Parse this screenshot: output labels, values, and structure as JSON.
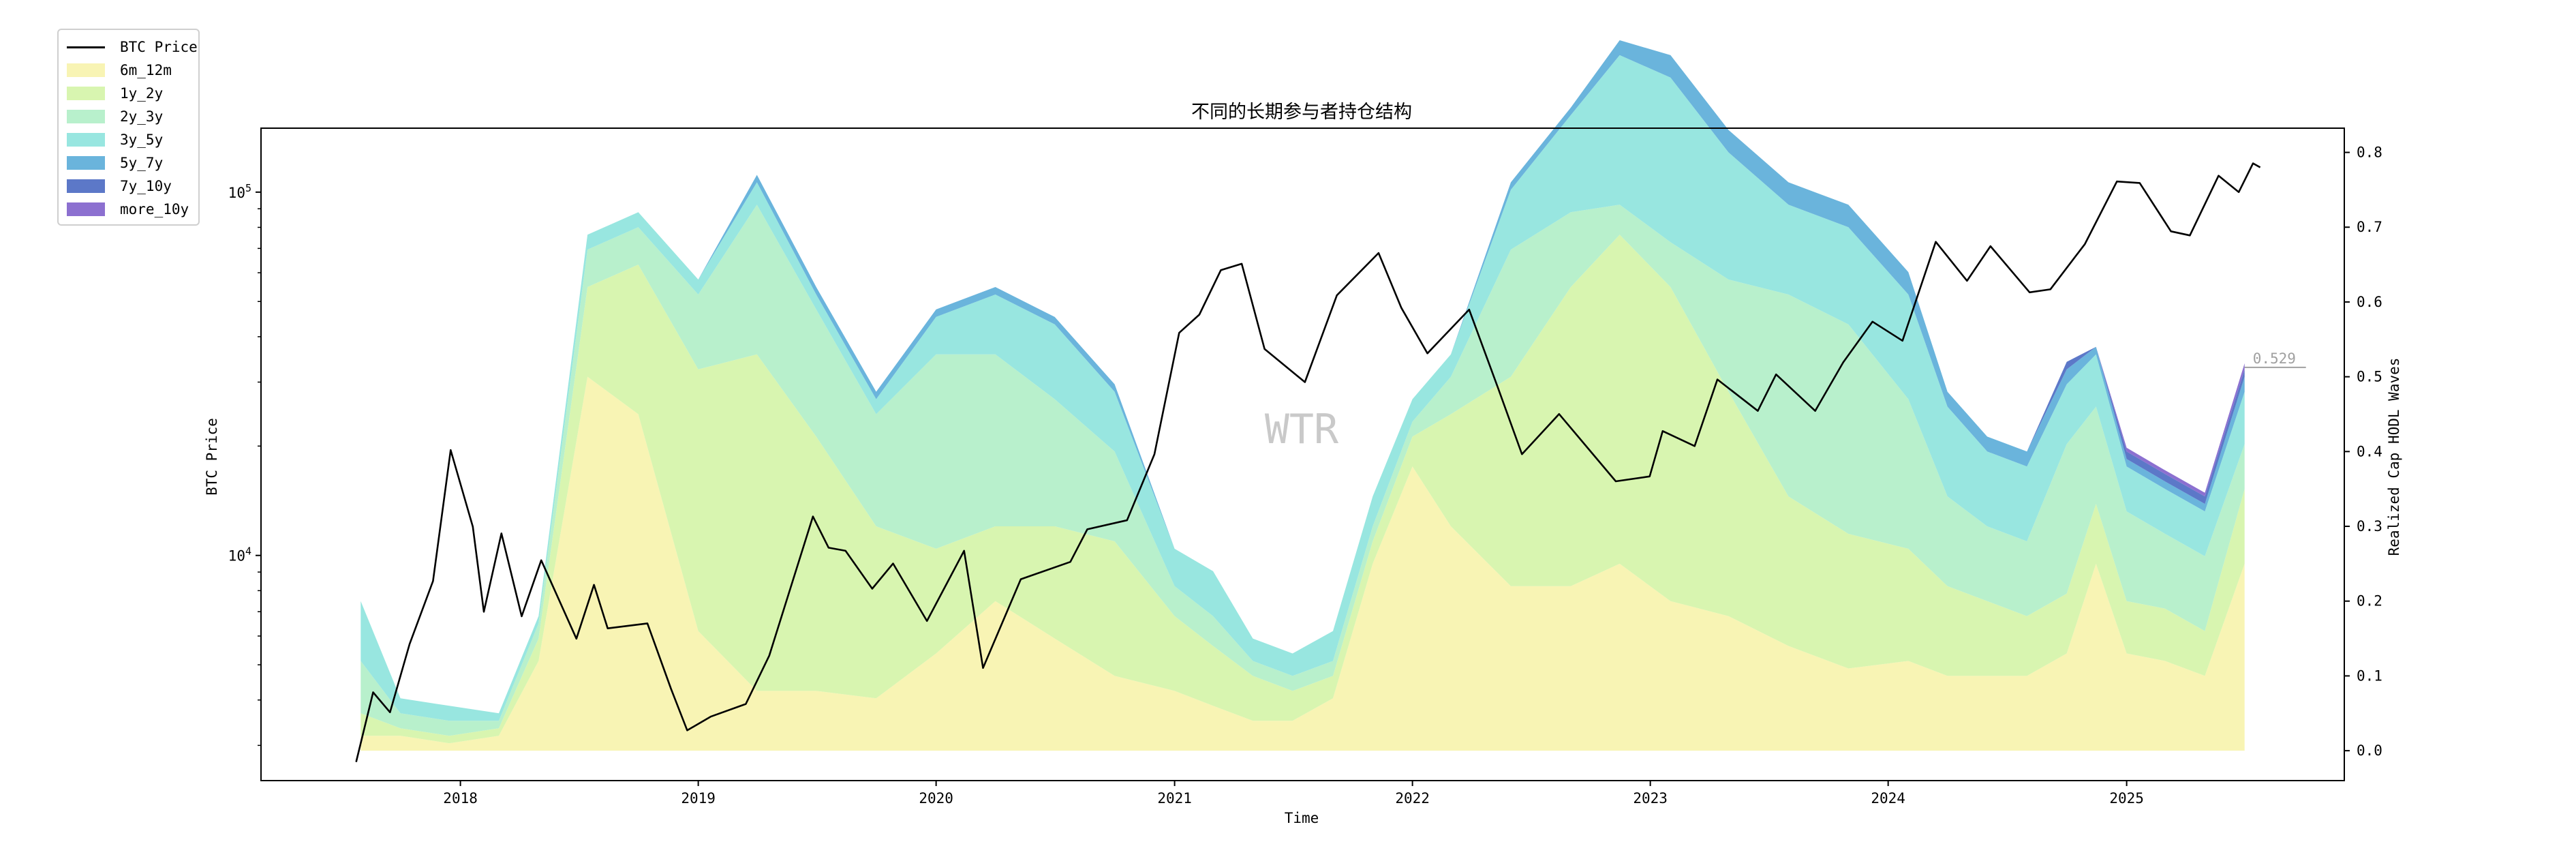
{
  "chart_data": {
    "type": "area",
    "title": "不同的长期参与者持仓结构",
    "xlabel": "Time",
    "ylabel_left": "BTC Price",
    "ylabel_right": "Realized Cap HODL Waves",
    "left_axis": {
      "scale": "log",
      "ylim": [
        2400,
        150000
      ],
      "ticks": [
        10000,
        100000
      ],
      "tick_labels": [
        "10^4",
        "10^5"
      ]
    },
    "right_axis": {
      "ylim": [
        -0.04,
        0.8324
      ],
      "ticks": [
        0.0,
        0.1,
        0.2,
        0.3,
        0.4,
        0.5,
        0.6,
        0.7,
        0.8
      ],
      "tick_labels": [
        "0.0",
        "0.1",
        "0.2",
        "0.3",
        "0.4",
        "0.5",
        "0.6",
        "0.7",
        "0.8"
      ]
    },
    "xlim": [
      "2017-03-01",
      "2025-12-01"
    ],
    "x_tick_labels": [
      "2018",
      "2019",
      "2020",
      "2021",
      "2022",
      "2023",
      "2024",
      "2025"
    ],
    "x_tick_dates": [
      "2018-01-01",
      "2019-01-01",
      "2020-01-01",
      "2021-01-01",
      "2022-01-01",
      "2023-01-01",
      "2024-01-01",
      "2025-01-01"
    ],
    "watermark": "WTR",
    "last_value_label": "0.529",
    "legend_position": "upper-left",
    "grid": false,
    "dates": [
      "2017-08-01",
      "2017-10-01",
      "2017-12-15",
      "2018-03-01",
      "2018-05-01",
      "2018-07-15",
      "2018-10-01",
      "2019-01-01",
      "2019-04-01",
      "2019-07-01",
      "2019-10-01",
      "2020-01-01",
      "2020-04-01",
      "2020-07-01",
      "2020-10-01",
      "2021-01-01",
      "2021-03-01",
      "2021-05-01",
      "2021-07-01",
      "2021-09-01",
      "2021-11-01",
      "2022-01-01",
      "2022-03-01",
      "2022-06-01",
      "2022-09-01",
      "2022-11-15",
      "2023-02-01",
      "2023-05-01",
      "2023-08-01",
      "2023-11-01",
      "2024-02-01",
      "2024-04-01",
      "2024-06-01",
      "2024-08-01",
      "2024-10-01",
      "2024-11-15",
      "2025-01-01",
      "2025-03-01",
      "2025-05-01",
      "2025-07-01"
    ],
    "series": [
      {
        "name": "6m_12m",
        "color": "#f8f4b4",
        "values": [
          0.02,
          0.02,
          0.01,
          0.02,
          0.12,
          0.5,
          0.45,
          0.16,
          0.08,
          0.08,
          0.07,
          0.13,
          0.2,
          0.15,
          0.1,
          0.08,
          0.06,
          0.04,
          0.04,
          0.07,
          0.25,
          0.38,
          0.3,
          0.22,
          0.22,
          0.25,
          0.2,
          0.18,
          0.14,
          0.11,
          0.12,
          0.1,
          0.1,
          0.1,
          0.13,
          0.25,
          0.13,
          0.12,
          0.1,
          0.25
        ]
      },
      {
        "name": "1y_2y",
        "color": "#d8f5b0",
        "values": [
          0.03,
          0.01,
          0.01,
          0.01,
          0.03,
          0.12,
          0.2,
          0.35,
          0.45,
          0.34,
          0.23,
          0.14,
          0.1,
          0.15,
          0.18,
          0.1,
          0.08,
          0.06,
          0.04,
          0.03,
          0.03,
          0.04,
          0.15,
          0.28,
          0.4,
          0.44,
          0.42,
          0.3,
          0.2,
          0.18,
          0.15,
          0.12,
          0.1,
          0.08,
          0.08,
          0.08,
          0.07,
          0.07,
          0.06,
          0.1
        ]
      },
      {
        "name": "2y_3y",
        "color": "#b8f0cc",
        "values": [
          0.07,
          0.02,
          0.02,
          0.01,
          0.02,
          0.05,
          0.05,
          0.1,
          0.2,
          0.17,
          0.15,
          0.26,
          0.23,
          0.17,
          0.12,
          0.04,
          0.04,
          0.02,
          0.02,
          0.02,
          0.02,
          0.02,
          0.05,
          0.17,
          0.1,
          0.04,
          0.06,
          0.15,
          0.27,
          0.28,
          0.2,
          0.12,
          0.1,
          0.1,
          0.2,
          0.13,
          0.12,
          0.1,
          0.1,
          0.06
        ]
      },
      {
        "name": "3y_5y",
        "color": "#98e6e0",
        "values": [
          0.08,
          0.02,
          0.02,
          0.01,
          0.01,
          0.02,
          0.02,
          0.02,
          0.03,
          0.02,
          0.02,
          0.05,
          0.08,
          0.1,
          0.08,
          0.05,
          0.06,
          0.03,
          0.03,
          0.04,
          0.04,
          0.03,
          0.03,
          0.08,
          0.13,
          0.2,
          0.22,
          0.17,
          0.12,
          0.13,
          0.14,
          0.12,
          0.1,
          0.1,
          0.08,
          0.07,
          0.06,
          0.06,
          0.06,
          0.07
        ]
      },
      {
        "name": "5y_7y",
        "color": "#6ab4dc",
        "values": [
          0.0,
          0.0,
          0.0,
          0.0,
          0.0,
          0.0,
          0.0,
          0.0,
          0.01,
          0.01,
          0.01,
          0.01,
          0.01,
          0.01,
          0.01,
          0.0,
          0.0,
          0.0,
          0.0,
          0.0,
          0.0,
          0.0,
          0.0,
          0.01,
          0.01,
          0.02,
          0.03,
          0.03,
          0.03,
          0.03,
          0.03,
          0.02,
          0.02,
          0.02,
          0.02,
          0.01,
          0.01,
          0.01,
          0.01,
          0.02
        ]
      },
      {
        "name": "7y_10y",
        "color": "#5c78c8",
        "values": [
          0.0,
          0.0,
          0.0,
          0.0,
          0.0,
          0.0,
          0.0,
          0.0,
          0.0,
          0.0,
          0.0,
          0.0,
          0.0,
          0.0,
          0.0,
          0.0,
          0.0,
          0.0,
          0.0,
          0.0,
          0.0,
          0.0,
          0.0,
          0.0,
          0.0,
          0.0,
          0.0,
          0.0,
          0.0,
          0.0,
          0.0,
          0.0,
          0.0,
          0.0,
          0.01,
          0.0,
          0.01,
          0.01,
          0.01,
          0.01
        ]
      },
      {
        "name": "more_10y",
        "color": "#8c70d0",
        "values": [
          0.0,
          0.0,
          0.0,
          0.0,
          0.0,
          0.0,
          0.0,
          0.0,
          0.0,
          0.0,
          0.0,
          0.0,
          0.0,
          0.0,
          0.0,
          0.0,
          0.0,
          0.0,
          0.0,
          0.0,
          0.0,
          0.0,
          0.0,
          0.0,
          0.0,
          0.0,
          0.0,
          0.0,
          0.0,
          0.0,
          0.0,
          0.0,
          0.0,
          0.0,
          0.0,
          0.0,
          0.005,
          0.005,
          0.005,
          0.008
        ]
      }
    ],
    "price_series": {
      "name": "BTC Price",
      "color": "#000000",
      "axis": "left",
      "points": [
        [
          "2017-07-25",
          2700
        ],
        [
          "2017-08-20",
          4200
        ],
        [
          "2017-09-15",
          3700
        ],
        [
          "2017-10-15",
          5700
        ],
        [
          "2017-11-20",
          8500
        ],
        [
          "2017-12-17",
          19500
        ],
        [
          "2018-01-20",
          12000
        ],
        [
          "2018-02-06",
          7000
        ],
        [
          "2018-03-05",
          11500
        ],
        [
          "2018-04-05",
          6800
        ],
        [
          "2018-05-05",
          9700
        ],
        [
          "2018-06-28",
          5900
        ],
        [
          "2018-07-25",
          8300
        ],
        [
          "2018-08-15",
          6300
        ],
        [
          "2018-10-15",
          6500
        ],
        [
          "2018-11-20",
          4300
        ],
        [
          "2018-12-15",
          3300
        ],
        [
          "2019-01-20",
          3600
        ],
        [
          "2019-03-15",
          3900
        ],
        [
          "2019-04-20",
          5300
        ],
        [
          "2019-06-26",
          12800
        ],
        [
          "2019-07-20",
          10500
        ],
        [
          "2019-08-15",
          10300
        ],
        [
          "2019-09-25",
          8100
        ],
        [
          "2019-10-27",
          9500
        ],
        [
          "2019-12-18",
          6600
        ],
        [
          "2020-02-13",
          10300
        ],
        [
          "2020-03-13",
          4900
        ],
        [
          "2020-05-10",
          8600
        ],
        [
          "2020-07-25",
          9600
        ],
        [
          "2020-08-20",
          11800
        ],
        [
          "2020-10-20",
          12500
        ],
        [
          "2020-12-01",
          19000
        ],
        [
          "2021-01-08",
          41000
        ],
        [
          "2021-02-08",
          46000
        ],
        [
          "2021-03-13",
          61000
        ],
        [
          "2021-04-14",
          63500
        ],
        [
          "2021-05-19",
          37000
        ],
        [
          "2021-07-20",
          30000
        ],
        [
          "2021-09-07",
          52000
        ],
        [
          "2021-11-10",
          68000
        ],
        [
          "2021-12-15",
          48000
        ],
        [
          "2022-01-24",
          36000
        ],
        [
          "2022-03-29",
          47500
        ],
        [
          "2022-05-12",
          29000
        ],
        [
          "2022-06-18",
          19000
        ],
        [
          "2022-08-14",
          24500
        ],
        [
          "2022-11-09",
          16000
        ],
        [
          "2022-12-31",
          16500
        ],
        [
          "2023-01-20",
          22000
        ],
        [
          "2023-03-10",
          20000
        ],
        [
          "2023-04-14",
          30500
        ],
        [
          "2023-06-15",
          25000
        ],
        [
          "2023-07-13",
          31500
        ],
        [
          "2023-09-11",
          25000
        ],
        [
          "2023-10-24",
          34000
        ],
        [
          "2023-12-08",
          44000
        ],
        [
          "2024-01-23",
          39000
        ],
        [
          "2024-03-14",
          73000
        ],
        [
          "2024-05-01",
          57000
        ],
        [
          "2024-06-06",
          71000
        ],
        [
          "2024-08-05",
          53000
        ],
        [
          "2024-09-06",
          54000
        ],
        [
          "2024-10-29",
          72000
        ],
        [
          "2024-12-17",
          107000
        ],
        [
          "2025-01-21",
          106000
        ],
        [
          "2025-03-10",
          78000
        ],
        [
          "2025-04-08",
          76000
        ],
        [
          "2025-05-22",
          111000
        ],
        [
          "2025-06-22",
          100000
        ],
        [
          "2025-07-14",
          120000
        ],
        [
          "2025-07-25",
          117000
        ]
      ]
    }
  },
  "legend": [
    {
      "label": "BTC Price",
      "kind": "line",
      "color": "#000000"
    },
    {
      "label": "6m_12m",
      "kind": "patch",
      "color": "#f8f4b4"
    },
    {
      "label": "1y_2y",
      "kind": "patch",
      "color": "#d8f5b0"
    },
    {
      "label": "2y_3y",
      "kind": "patch",
      "color": "#b8f0cc"
    },
    {
      "label": "3y_5y",
      "kind": "patch",
      "color": "#98e6e0"
    },
    {
      "label": "5y_7y",
      "kind": "patch",
      "color": "#6ab4dc"
    },
    {
      "label": "7y_10y",
      "kind": "patch",
      "color": "#5c78c8"
    },
    {
      "label": "more_10y",
      "kind": "patch",
      "color": "#8c70d0"
    }
  ]
}
